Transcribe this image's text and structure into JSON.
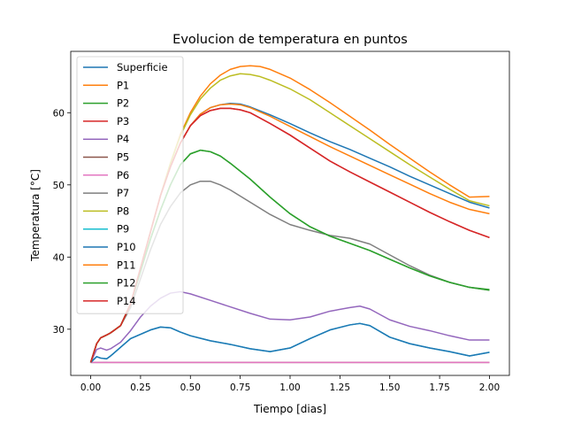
{
  "chart_data": {
    "type": "line",
    "title": "Evolucion de temperatura en puntos",
    "xlabel": "Tiempo [dias]",
    "ylabel": "Temperatura [°C]",
    "xlim": [
      -0.1,
      2.1
    ],
    "ylim": [
      23.6,
      68.5
    ],
    "xticks": [
      0.0,
      0.25,
      0.5,
      0.75,
      1.0,
      1.25,
      1.5,
      1.75,
      2.0
    ],
    "xtick_labels": [
      "0.00",
      "0.25",
      "0.50",
      "0.75",
      "1.00",
      "1.25",
      "1.50",
      "1.75",
      "2.00"
    ],
    "yticks": [
      30,
      40,
      50,
      60
    ],
    "ytick_labels": [
      "30",
      "40",
      "50",
      "60"
    ],
    "grid": false,
    "legend_position": "top-left",
    "series": [
      {
        "name": "Superficie",
        "color": "#1f77b4",
        "x": [
          0,
          0.03,
          0.05,
          0.08,
          0.1,
          0.15,
          0.2,
          0.25,
          0.3,
          0.35,
          0.4,
          0.45,
          0.5,
          0.55,
          0.6,
          0.65,
          0.7,
          0.75,
          0.8,
          0.9,
          1.0,
          1.1,
          1.2,
          1.3,
          1.4,
          1.5,
          1.6,
          1.7,
          1.8,
          1.9,
          2.0
        ],
        "y": [
          25.4,
          28.0,
          28.8,
          29.2,
          29.5,
          30.5,
          33.5,
          38.5,
          43.5,
          48.5,
          52.5,
          55.8,
          58.2,
          59.8,
          60.7,
          61.1,
          61.3,
          61.2,
          60.8,
          59.7,
          58.5,
          57.2,
          56.0,
          54.9,
          53.7,
          52.5,
          51.2,
          50.0,
          48.8,
          47.6,
          46.8
        ]
      },
      {
        "name": "P1",
        "color": "#ff7f0e",
        "x": [
          0,
          0.03,
          0.05,
          0.08,
          0.1,
          0.15,
          0.2,
          0.25,
          0.3,
          0.35,
          0.4,
          0.45,
          0.5,
          0.55,
          0.6,
          0.65,
          0.7,
          0.75,
          0.8,
          0.85,
          0.9,
          1.0,
          1.1,
          1.2,
          1.3,
          1.4,
          1.5,
          1.6,
          1.7,
          1.8,
          1.9,
          2.0
        ],
        "y": [
          25.4,
          28.0,
          28.8,
          29.2,
          29.5,
          30.5,
          33.5,
          38.5,
          43.5,
          48.5,
          53.0,
          57.0,
          60.0,
          62.3,
          64.0,
          65.2,
          66.0,
          66.4,
          66.5,
          66.4,
          66.0,
          64.8,
          63.2,
          61.4,
          59.5,
          57.6,
          55.6,
          53.7,
          51.8,
          50.0,
          48.3,
          48.4
        ]
      },
      {
        "name": "P2",
        "color": "#2ca02c",
        "x": [
          0,
          0.03,
          0.05,
          0.08,
          0.1,
          0.15,
          0.2,
          0.25,
          0.3,
          0.35,
          0.4,
          0.45,
          0.5,
          0.55,
          0.6,
          0.65,
          0.7,
          0.8,
          0.9,
          1.0,
          1.1,
          1.2,
          1.3,
          1.4,
          1.5,
          1.6,
          1.7,
          1.8,
          1.9,
          2.0
        ],
        "y": [
          25.4,
          28.0,
          28.8,
          29.2,
          29.5,
          30.5,
          33.5,
          38.0,
          42.5,
          46.5,
          50.0,
          52.8,
          54.3,
          54.8,
          54.6,
          54.0,
          53.0,
          50.8,
          48.3,
          46.0,
          44.2,
          42.9,
          41.9,
          40.9,
          39.7,
          38.5,
          37.4,
          36.5,
          35.8,
          35.5
        ]
      },
      {
        "name": "P3",
        "color": "#d62728",
        "x": [
          0,
          0.03,
          0.05,
          0.08,
          0.1,
          0.15,
          0.2,
          0.25,
          0.3,
          0.35,
          0.4,
          0.45,
          0.5,
          0.55,
          0.6,
          0.65,
          0.7,
          0.75,
          0.8,
          0.9,
          1.0,
          1.1,
          1.2,
          1.3,
          1.4,
          1.5,
          1.6,
          1.7,
          1.8,
          1.9,
          2.0
        ],
        "y": [
          25.4,
          28.0,
          28.8,
          29.2,
          29.5,
          30.5,
          33.5,
          38.5,
          43.5,
          48.5,
          52.5,
          55.8,
          58.2,
          59.6,
          60.3,
          60.6,
          60.6,
          60.4,
          60.0,
          58.5,
          56.9,
          55.1,
          53.3,
          51.8,
          50.4,
          49.0,
          47.6,
          46.2,
          44.9,
          43.7,
          42.7
        ]
      },
      {
        "name": "P4",
        "color": "#9467bd",
        "x": [
          0,
          0.03,
          0.05,
          0.08,
          0.1,
          0.15,
          0.2,
          0.25,
          0.3,
          0.35,
          0.4,
          0.45,
          0.5,
          0.6,
          0.7,
          0.8,
          0.9,
          1.0,
          1.1,
          1.2,
          1.3,
          1.35,
          1.4,
          1.5,
          1.6,
          1.7,
          1.8,
          1.9,
          2.0
        ],
        "y": [
          25.4,
          27.2,
          27.4,
          27.1,
          27.3,
          28.2,
          29.8,
          31.7,
          33.2,
          34.3,
          35.0,
          35.2,
          34.9,
          34.0,
          33.1,
          32.2,
          31.4,
          31.3,
          31.7,
          32.5,
          33.0,
          33.2,
          32.8,
          31.3,
          30.4,
          29.8,
          29.1,
          28.5,
          28.5
        ]
      },
      {
        "name": "P5",
        "color": "#8c564b",
        "x": [
          0,
          2.0
        ],
        "y": [
          25.4,
          25.4
        ]
      },
      {
        "name": "P6",
        "color": "#e377c2",
        "x": [
          0,
          2.0
        ],
        "y": [
          25.4,
          25.4
        ]
      },
      {
        "name": "P7",
        "color": "#7f7f7f",
        "x": [
          0,
          0.03,
          0.05,
          0.08,
          0.1,
          0.15,
          0.2,
          0.25,
          0.3,
          0.35,
          0.4,
          0.45,
          0.5,
          0.55,
          0.6,
          0.65,
          0.7,
          0.8,
          0.9,
          1.0,
          1.1,
          1.2,
          1.3,
          1.4,
          1.5,
          1.6,
          1.7,
          1.8,
          1.9,
          2.0
        ],
        "y": [
          25.4,
          28.0,
          28.8,
          29.2,
          29.5,
          30.5,
          33.0,
          37.0,
          41.0,
          44.5,
          47.0,
          48.9,
          50.0,
          50.5,
          50.5,
          50.0,
          49.3,
          47.6,
          45.9,
          44.5,
          43.7,
          43.0,
          42.6,
          41.8,
          40.3,
          38.8,
          37.5,
          36.5,
          35.8,
          35.4
        ]
      },
      {
        "name": "P8",
        "color": "#bcbd22",
        "x": [
          0,
          0.03,
          0.05,
          0.08,
          0.1,
          0.15,
          0.2,
          0.25,
          0.3,
          0.35,
          0.4,
          0.45,
          0.5,
          0.55,
          0.6,
          0.65,
          0.7,
          0.75,
          0.8,
          0.85,
          0.9,
          1.0,
          1.1,
          1.2,
          1.3,
          1.4,
          1.5,
          1.6,
          1.7,
          1.8,
          1.9,
          2.0
        ],
        "y": [
          25.4,
          28.0,
          28.8,
          29.2,
          29.5,
          30.5,
          33.5,
          38.5,
          43.5,
          48.5,
          53.0,
          56.8,
          59.7,
          61.9,
          63.4,
          64.5,
          65.1,
          65.4,
          65.3,
          65.0,
          64.5,
          63.3,
          61.8,
          60.0,
          58.2,
          56.4,
          54.6,
          52.8,
          51.1,
          49.4,
          47.8,
          47.1
        ]
      },
      {
        "name": "P9",
        "color": "#17becf",
        "x": [
          0,
          0.03,
          0.05,
          0.08,
          0.1,
          0.15,
          0.2,
          0.25,
          0.3,
          0.35,
          0.4,
          0.45,
          0.5,
          0.6,
          0.7,
          0.8,
          0.9,
          1.0,
          1.1,
          1.2,
          1.3,
          1.35,
          1.4,
          1.5,
          1.6,
          1.7,
          1.8,
          1.9,
          2.0
        ],
        "y": [
          25.4,
          26.2,
          26.0,
          25.9,
          26.3,
          27.5,
          28.7,
          29.3,
          29.9,
          30.3,
          30.2,
          29.6,
          29.1,
          28.4,
          27.9,
          27.3,
          26.9,
          27.4,
          28.7,
          29.9,
          30.6,
          30.8,
          30.5,
          28.9,
          28.0,
          27.4,
          26.9,
          26.3,
          26.8
        ]
      },
      {
        "name": "P10",
        "color": "#1f77b4",
        "x": [
          0,
          0.03,
          0.05,
          0.08,
          0.1,
          0.15,
          0.2,
          0.25,
          0.3,
          0.35,
          0.4,
          0.45,
          0.5,
          0.6,
          0.7,
          0.8,
          0.9,
          1.0,
          1.1,
          1.2,
          1.3,
          1.35,
          1.4,
          1.5,
          1.6,
          1.7,
          1.8,
          1.9,
          2.0
        ],
        "y": [
          25.4,
          26.2,
          26.0,
          25.9,
          26.3,
          27.5,
          28.7,
          29.3,
          29.9,
          30.3,
          30.2,
          29.6,
          29.1,
          28.4,
          27.9,
          27.3,
          26.9,
          27.4,
          28.7,
          29.9,
          30.6,
          30.8,
          30.5,
          28.9,
          28.0,
          27.4,
          26.9,
          26.3,
          26.8
        ]
      },
      {
        "name": "P11",
        "color": "#ff7f0e",
        "x": [
          0,
          0.03,
          0.05,
          0.08,
          0.1,
          0.15,
          0.2,
          0.25,
          0.3,
          0.35,
          0.4,
          0.45,
          0.5,
          0.55,
          0.6,
          0.65,
          0.7,
          0.75,
          0.8,
          0.9,
          1.0,
          1.1,
          1.2,
          1.3,
          1.4,
          1.5,
          1.6,
          1.7,
          1.8,
          1.9,
          2.0
        ],
        "y": [
          25.4,
          28.0,
          28.8,
          29.2,
          29.5,
          30.5,
          33.5,
          38.5,
          43.5,
          48.5,
          52.5,
          55.8,
          58.2,
          59.8,
          60.7,
          61.1,
          61.2,
          61.1,
          60.7,
          59.5,
          58.1,
          56.7,
          55.3,
          54.0,
          52.7,
          51.4,
          50.1,
          48.8,
          47.6,
          46.6,
          46.0
        ]
      },
      {
        "name": "P12",
        "color": "#2ca02c",
        "x": [
          0,
          0.03,
          0.05,
          0.08,
          0.1,
          0.15,
          0.2,
          0.25,
          0.3,
          0.35,
          0.4,
          0.45,
          0.5,
          0.55,
          0.6,
          0.65,
          0.7,
          0.8,
          0.9,
          1.0,
          1.1,
          1.2,
          1.3,
          1.4,
          1.5,
          1.6,
          1.7,
          1.8,
          1.9,
          2.0
        ],
        "y": [
          25.4,
          28.0,
          28.8,
          29.2,
          29.5,
          30.5,
          33.5,
          38.0,
          42.5,
          46.5,
          50.0,
          52.8,
          54.3,
          54.8,
          54.6,
          54.0,
          53.0,
          50.8,
          48.3,
          46.0,
          44.2,
          42.9,
          41.9,
          40.9,
          39.7,
          38.5,
          37.4,
          36.5,
          35.8,
          35.4
        ]
      },
      {
        "name": "P14",
        "color": "#d62728",
        "x": [
          0,
          0.03,
          0.05,
          0.08,
          0.1,
          0.15,
          0.2,
          0.25,
          0.3,
          0.35,
          0.4,
          0.45,
          0.5,
          0.55,
          0.6,
          0.65,
          0.7,
          0.75,
          0.8,
          0.9,
          1.0,
          1.1,
          1.2,
          1.3,
          1.4,
          1.5,
          1.6,
          1.7,
          1.8,
          1.9,
          2.0
        ],
        "y": [
          25.4,
          28.0,
          28.8,
          29.2,
          29.5,
          30.5,
          33.5,
          38.5,
          43.5,
          48.5,
          52.5,
          55.8,
          58.2,
          59.6,
          60.3,
          60.6,
          60.6,
          60.4,
          60.0,
          58.5,
          56.9,
          55.1,
          53.3,
          51.8,
          50.4,
          49.0,
          47.6,
          46.2,
          44.9,
          43.7,
          42.7
        ]
      }
    ]
  }
}
